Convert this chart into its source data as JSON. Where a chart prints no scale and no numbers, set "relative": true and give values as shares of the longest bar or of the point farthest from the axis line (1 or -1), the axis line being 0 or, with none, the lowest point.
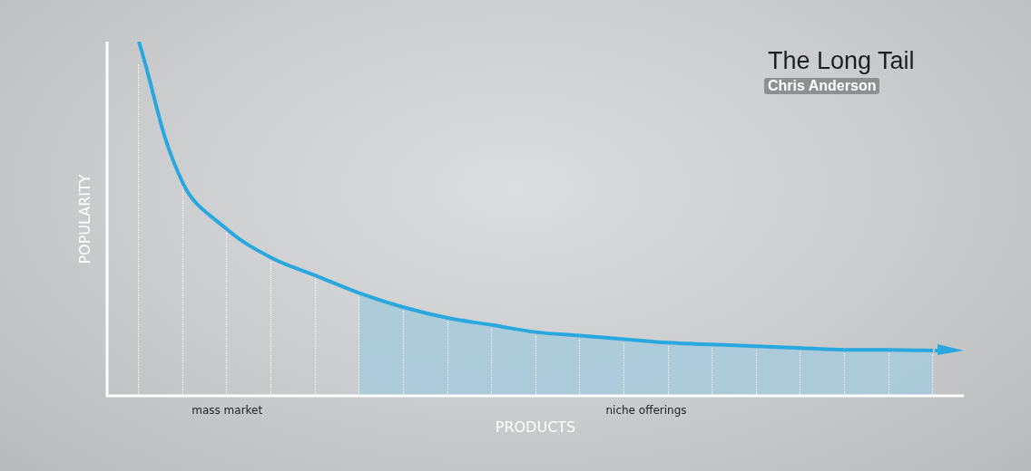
{
  "chart_data": {
    "type": "line",
    "title": "The Long Tail",
    "subtitle": "Chris Anderson",
    "xlabel": "PRODUCTS",
    "ylabel": "POPULARITY",
    "relative": true,
    "categories": [
      null,
      null,
      null,
      null,
      null,
      null,
      null,
      null,
      null,
      null,
      null,
      null,
      null,
      null,
      null,
      null,
      null,
      null,
      null
    ],
    "series": [
      {
        "type": "line",
        "color": "#29a8e0",
        "values": [
          1,
          0.6,
          0.47,
          0.39,
          0.34,
          0.29,
          0.25,
          0.22,
          0.2,
          0.18,
          0.17,
          0.16,
          0.15,
          0.145,
          0.14,
          0.135,
          0.13,
          0.13,
          0.128
        ]
      },
      {
        "type": "area",
        "color": "#a9cad9",
        "values": [
          null,
          null,
          null,
          null,
          null,
          0.29,
          0.25,
          0.22,
          0.2,
          0.18,
          0.17,
          0.16,
          0.15,
          0.145,
          0.14,
          0.135,
          0.13,
          0.13,
          0.128
        ]
      }
    ],
    "annotations": [
      "mass market",
      "niche offerings"
    ],
    "legend": false
  }
}
